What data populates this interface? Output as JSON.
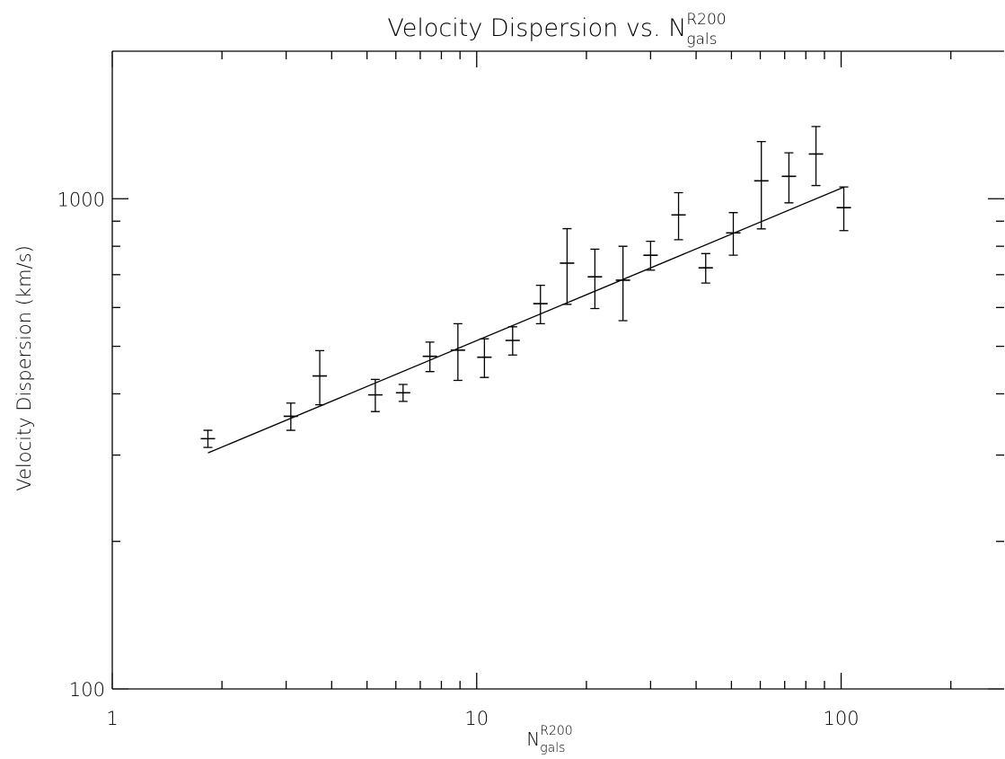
{
  "chart_data": {
    "type": "scatter",
    "title": {
      "text": "Velocity Dispersion vs. N",
      "superscript": "R200",
      "subscript": "gals"
    },
    "x_label": {
      "text": "N",
      "superscript": "R200",
      "subscript": "gals"
    },
    "y_label": "Velocity Dispersion (km/s)",
    "xlog": true,
    "ylog": true,
    "xlim": [
      1,
      280
    ],
    "ylim": [
      100,
      2000
    ],
    "xticks": [
      1,
      10,
      100
    ],
    "yticks": [
      100,
      1000
    ],
    "xminor": [
      2,
      3,
      4,
      5,
      6,
      7,
      8,
      9,
      20,
      30,
      40,
      50,
      60,
      70,
      80,
      90,
      200
    ],
    "yminor": [
      200,
      300,
      400,
      500,
      600,
      700,
      800,
      900
    ],
    "color": "#000000",
    "series": [
      {
        "x": [
          1.83,
          3.09,
          3.71,
          5.27,
          6.28,
          7.44,
          8.88,
          10.5,
          12.55,
          14.96,
          17.7,
          21.1,
          25.2,
          30.0,
          35.8,
          42.5,
          50.6,
          60.4,
          71.9,
          85.3,
          101.7
        ],
        "y": [
          324,
          360,
          435,
          398,
          402,
          477,
          491,
          475,
          514,
          611,
          739,
          693,
          682,
          767,
          927,
          723,
          852,
          1088,
          1111,
          1234,
          959
        ],
        "yerr": [
          13,
          23,
          55,
          30,
          16,
          33,
          65,
          43,
          34,
          55,
          130,
          96,
          118,
          52,
          102,
          50,
          85,
          220,
          130,
          170,
          98
        ]
      }
    ],
    "fit": {
      "x": [
        1.83,
        101.7
      ],
      "y": [
        303,
        1056
      ]
    }
  }
}
